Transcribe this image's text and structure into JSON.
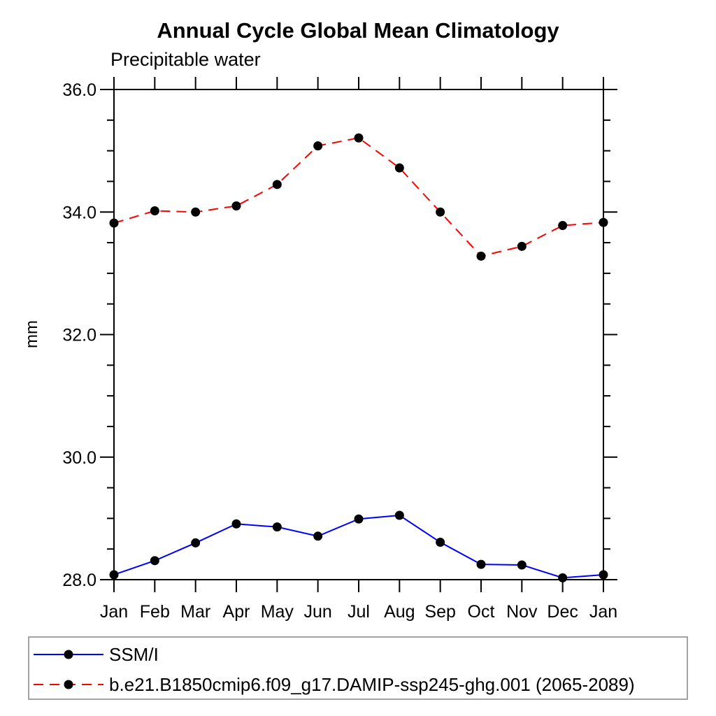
{
  "page": {
    "background_color": "#ffffff",
    "text_color": "#000000"
  },
  "chart_data": {
    "type": "line",
    "title": "Annual Cycle Global Mean Climatology",
    "left_subtitle": "Precipitable water",
    "ylabel": "mm",
    "xlabel": "",
    "ylim": [
      28.0,
      36.0
    ],
    "ytick_major": [
      28.0,
      30.0,
      32.0,
      34.0,
      36.0
    ],
    "ytick_labels": [
      "28.0",
      "30.0",
      "32.0",
      "34.0",
      "36.0"
    ],
    "ytick_minor_step": 0.5,
    "grid": false,
    "frame": "box-with-outward-ticks",
    "legend_position": "bottom-left-box",
    "categories": [
      "Jan",
      "Feb",
      "Mar",
      "Apr",
      "May",
      "Jun",
      "Jul",
      "Aug",
      "Sep",
      "Oct",
      "Nov",
      "Dec",
      "Jan"
    ],
    "series": [
      {
        "name": "SSM/I",
        "color": "#0000ff",
        "line_style": "solid",
        "marker": "filled-circle",
        "marker_color": "#000000",
        "values": [
          28.08,
          28.31,
          28.6,
          28.91,
          28.86,
          28.71,
          28.99,
          29.05,
          28.61,
          28.25,
          28.24,
          28.03,
          28.08
        ]
      },
      {
        "name": "b.e21.B1850cmip6.f09_g17.DAMIP-ssp245-ghg.001 (2065-2089)",
        "color": "#ff0000",
        "line_style": "dashed",
        "marker": "filled-circle",
        "marker_color": "#000000",
        "values": [
          33.82,
          34.02,
          34.0,
          34.1,
          34.45,
          35.08,
          35.21,
          34.72,
          34.0,
          33.28,
          33.44,
          33.78,
          33.83
        ]
      }
    ]
  }
}
